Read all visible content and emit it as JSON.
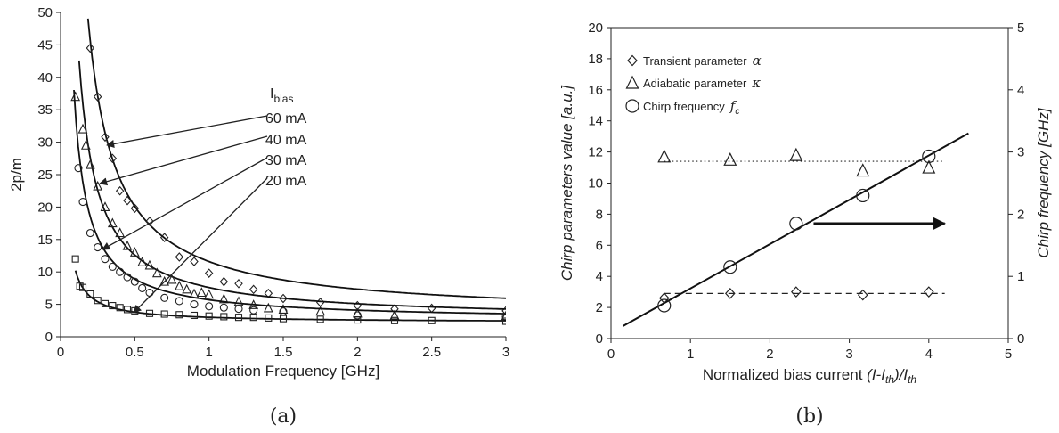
{
  "chart_data": [
    {
      "type": "scatter",
      "caption": "(a)",
      "xlabel": "Modulation Frequency [GHz]",
      "ylabel": "2p/m",
      "xlim": [
        0,
        3
      ],
      "ylim": [
        0,
        50
      ],
      "xticks": [
        "0",
        "0.5",
        "1",
        "1.5",
        "2",
        "2.5",
        "3"
      ],
      "yticks": [
        "0",
        "5",
        "10",
        "15",
        "20",
        "25",
        "30",
        "35",
        "40",
        "45",
        "50"
      ],
      "grid": false,
      "annotation_title": "Ibias",
      "series": [
        {
          "name": "60 mA",
          "marker": "diamond",
          "points": [
            [
              0.2,
              44.5
            ],
            [
              0.25,
              37
            ],
            [
              0.3,
              30.8
            ],
            [
              0.35,
              27.5
            ],
            [
              0.4,
              22.5
            ],
            [
              0.45,
              21
            ],
            [
              0.5,
              19.8
            ],
            [
              0.6,
              17.8
            ],
            [
              0.7,
              15.3
            ],
            [
              0.8,
              12.3
            ],
            [
              0.9,
              11.6
            ],
            [
              1.0,
              9.8
            ],
            [
              1.1,
              8.5
            ],
            [
              1.2,
              8.2
            ],
            [
              1.3,
              7.3
            ],
            [
              1.4,
              6.7
            ],
            [
              1.5,
              5.9
            ],
            [
              1.75,
              5.3
            ],
            [
              2.0,
              4.8
            ],
            [
              2.25,
              4.3
            ],
            [
              2.5,
              4.4
            ],
            [
              3.0,
              4.0
            ]
          ],
          "fit": {
            "a": 8.5,
            "c": 3.1,
            "x0": 0.185
          }
        },
        {
          "name": "40 mA",
          "marker": "triangle",
          "points": [
            [
              0.1,
              37
            ],
            [
              0.15,
              32
            ],
            [
              0.17,
              29.5
            ],
            [
              0.2,
              26.5
            ],
            [
              0.25,
              23.2
            ],
            [
              0.3,
              20
            ],
            [
              0.35,
              17.5
            ],
            [
              0.4,
              16
            ],
            [
              0.45,
              14
            ],
            [
              0.5,
              13
            ],
            [
              0.55,
              11.5
            ],
            [
              0.6,
              11
            ],
            [
              0.65,
              9.8
            ],
            [
              0.7,
              8.5
            ],
            [
              0.75,
              8.8
            ],
            [
              0.8,
              7.8
            ],
            [
              0.85,
              7.3
            ],
            [
              0.9,
              6.6
            ],
            [
              0.95,
              6.8
            ],
            [
              1.0,
              6.5
            ],
            [
              1.1,
              5.8
            ],
            [
              1.2,
              5.4
            ],
            [
              1.3,
              4.9
            ],
            [
              1.4,
              4.4
            ],
            [
              1.5,
              4.2
            ],
            [
              1.75,
              3.9
            ],
            [
              2.0,
              3.6
            ],
            [
              2.25,
              3.3
            ],
            [
              3.0,
              3.2
            ]
          ],
          "fit": {
            "a": 5.0,
            "c": 2.6,
            "x0": 0.125
          }
        },
        {
          "name": "30 mA",
          "marker": "circle",
          "points": [
            [
              0.12,
              26
            ],
            [
              0.15,
              20.8
            ],
            [
              0.2,
              16
            ],
            [
              0.25,
              13.8
            ],
            [
              0.3,
              12
            ],
            [
              0.35,
              10.8
            ],
            [
              0.4,
              10
            ],
            [
              0.45,
              9.2
            ],
            [
              0.5,
              8.5
            ],
            [
              0.55,
              7.5
            ],
            [
              0.6,
              6.8
            ],
            [
              0.7,
              6
            ],
            [
              0.8,
              5.5
            ],
            [
              0.9,
              5
            ],
            [
              1.0,
              4.7
            ],
            [
              1.1,
              4.5
            ],
            [
              1.2,
              4.3
            ],
            [
              1.3,
              4.1
            ],
            [
              1.5,
              3.9
            ],
            [
              2.0,
              3.3
            ],
            [
              3.0,
              3.1
            ]
          ],
          "fit": {
            "a": 3.2,
            "c": 2.5,
            "x0": 0.09
          }
        },
        {
          "name": "20 mA",
          "marker": "square",
          "points": [
            [
              0.1,
              12
            ],
            [
              0.13,
              7.8
            ],
            [
              0.15,
              7.6
            ],
            [
              0.2,
              6.6
            ],
            [
              0.25,
              5.6
            ],
            [
              0.3,
              5.1
            ],
            [
              0.35,
              4.8
            ],
            [
              0.4,
              4.5
            ],
            [
              0.45,
              4.2
            ],
            [
              0.5,
              4
            ],
            [
              0.6,
              3.6
            ],
            [
              0.7,
              3.5
            ],
            [
              0.8,
              3.4
            ],
            [
              0.9,
              3.3
            ],
            [
              1.0,
              3.2
            ],
            [
              1.1,
              3.1
            ],
            [
              1.2,
              3
            ],
            [
              1.3,
              3
            ],
            [
              1.4,
              2.9
            ],
            [
              1.5,
              2.8
            ],
            [
              1.75,
              2.7
            ],
            [
              2.0,
              2.6
            ],
            [
              2.25,
              2.5
            ],
            [
              2.5,
              2.5
            ],
            [
              3.0,
              2.4
            ]
          ],
          "fit": {
            "a": 0.8,
            "c": 2.2,
            "x0": 0.1
          }
        }
      ]
    },
    {
      "type": "scatter",
      "caption": "(b)",
      "xlabel_main": "Normalized bias current ",
      "xlabel_formula": "(I-I",
      "xlabel_sub1": "th",
      "xlabel_mid": ")/I",
      "xlabel_sub2": "th",
      "ylabel": "Chirp parameters value  [a.u.]",
      "y2label": "Chirp frequency [GHz]",
      "xlim": [
        0,
        5
      ],
      "ylim": [
        0,
        20
      ],
      "y2lim": [
        0,
        5
      ],
      "xticks": [
        "0",
        "1",
        "2",
        "3",
        "4",
        "5"
      ],
      "yticks": [
        "0",
        "2",
        "4",
        "6",
        "8",
        "10",
        "12",
        "14",
        "16",
        "18",
        "20"
      ],
      "y2ticks": [
        "0",
        "1",
        "2",
        "3",
        "4",
        "5"
      ],
      "grid": false,
      "legend_position": "top-left",
      "series": [
        {
          "name": "Transient parameter",
          "symbol": "α",
          "marker": "diamond",
          "x": [
            0.67,
            1.5,
            2.33,
            3.17,
            4.0
          ],
          "y": [
            2.6,
            2.9,
            3.0,
            2.8,
            3.0
          ]
        },
        {
          "name": "Adiabatic parameter",
          "symbol": "κ",
          "marker": "triangle",
          "x": [
            0.67,
            1.5,
            2.33,
            3.17,
            4.0
          ],
          "y": [
            11.7,
            11.5,
            11.8,
            10.8,
            11.0
          ]
        },
        {
          "name": "Chirp frequency",
          "symbol": "f",
          "symbol_sub": "c",
          "marker": "circle",
          "axis": "right",
          "x": [
            0.67,
            1.5,
            2.33,
            3.17,
            4.0
          ],
          "y": [
            0.53,
            1.15,
            1.85,
            2.3,
            2.93
          ]
        }
      ],
      "reference_lines": [
        {
          "style": "dotted",
          "y": 11.4,
          "x": [
            0.67,
            4.2
          ]
        },
        {
          "style": "dashed",
          "y": 2.9,
          "x": [
            0.67,
            4.2
          ]
        }
      ],
      "fit_line": {
        "x": [
          0.15,
          4.5
        ],
        "y": [
          0.8,
          13.2
        ]
      },
      "arrow": {
        "direction": "right",
        "x": [
          2.55,
          4.2
        ],
        "y": 7.4
      }
    }
  ]
}
